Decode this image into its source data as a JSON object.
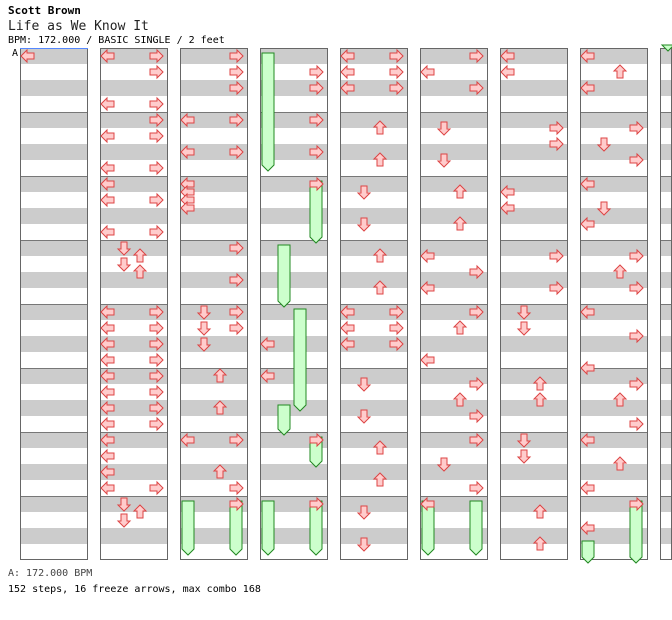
{
  "header": {
    "artist": "Scott Brown",
    "title": "Life as We Know It",
    "info": "BPM: 172.000 / BASIC SINGLE / 2 feet"
  },
  "bpm_marker": "A",
  "footer": {
    "bpm": "A: 172.000 BPM",
    "summary": "152 steps, 16 freeze arrows, max combo 168"
  },
  "colors": {
    "stripe": "#cccccc",
    "arrow_fill": "#ffcccc",
    "arrow_stroke": "#dd4444",
    "freeze_fill": "#ccffcc",
    "freeze_stroke": "#228822",
    "bpm_line": "#5588ff"
  },
  "columns": 9,
  "measures_per_column": 8,
  "lanes": [
    "left",
    "down",
    "up",
    "right"
  ],
  "notes": [
    [
      0,
      0.0,
      0,
      "N"
    ],
    [
      1,
      0.0,
      0,
      "N"
    ],
    [
      1,
      0.0,
      3,
      "N"
    ],
    [
      1,
      0.25,
      3,
      "N"
    ],
    [
      1,
      0.75,
      0,
      "N"
    ],
    [
      1,
      0.75,
      3,
      "N"
    ],
    [
      1,
      1.0,
      3,
      "N"
    ],
    [
      1,
      1.25,
      0,
      "N"
    ],
    [
      1,
      1.25,
      3,
      "N"
    ],
    [
      1,
      1.75,
      0,
      "N"
    ],
    [
      1,
      1.75,
      3,
      "N"
    ],
    [
      1,
      2.0,
      0,
      "N"
    ],
    [
      1,
      2.25,
      0,
      "N"
    ],
    [
      1,
      2.25,
      3,
      "N"
    ],
    [
      1,
      2.75,
      0,
      "N"
    ],
    [
      1,
      2.75,
      3,
      "N"
    ],
    [
      1,
      3.0,
      1,
      "N"
    ],
    [
      1,
      3.125,
      2,
      "N"
    ],
    [
      1,
      3.25,
      1,
      "N"
    ],
    [
      1,
      3.375,
      2,
      "N"
    ],
    [
      1,
      4.0,
      0,
      "N"
    ],
    [
      1,
      4.0,
      3,
      "N"
    ],
    [
      1,
      4.25,
      0,
      "N"
    ],
    [
      1,
      4.25,
      3,
      "N"
    ],
    [
      1,
      4.5,
      0,
      "N"
    ],
    [
      1,
      4.5,
      3,
      "N"
    ],
    [
      1,
      4.75,
      0,
      "N"
    ],
    [
      1,
      4.75,
      3,
      "N"
    ],
    [
      1,
      5.0,
      0,
      "N"
    ],
    [
      1,
      5.0,
      3,
      "N"
    ],
    [
      1,
      5.25,
      0,
      "N"
    ],
    [
      1,
      5.25,
      3,
      "N"
    ],
    [
      1,
      5.5,
      0,
      "N"
    ],
    [
      1,
      5.5,
      3,
      "N"
    ],
    [
      1,
      5.75,
      0,
      "N"
    ],
    [
      1,
      5.75,
      3,
      "N"
    ],
    [
      1,
      6.0,
      0,
      "N"
    ],
    [
      1,
      6.25,
      0,
      "N"
    ],
    [
      1,
      6.5,
      0,
      "N"
    ],
    [
      1,
      6.75,
      0,
      "N"
    ],
    [
      1,
      6.75,
      3,
      "N"
    ],
    [
      1,
      7.0,
      1,
      "N"
    ],
    [
      1,
      7.125,
      2,
      "N"
    ],
    [
      1,
      7.25,
      1,
      "N"
    ],
    [
      2,
      0.0,
      3,
      "N"
    ],
    [
      2,
      0.25,
      3,
      "N"
    ],
    [
      2,
      0.5,
      3,
      "N"
    ],
    [
      2,
      1.0,
      0,
      "N"
    ],
    [
      2,
      1.0,
      3,
      "N"
    ],
    [
      2,
      1.5,
      0,
      "N"
    ],
    [
      2,
      1.5,
      3,
      "N"
    ],
    [
      2,
      2.0,
      0,
      "N"
    ],
    [
      2,
      2.125,
      0,
      "N"
    ],
    [
      2,
      2.25,
      0,
      "N"
    ],
    [
      2,
      2.375,
      0,
      "N"
    ],
    [
      2,
      3.0,
      3,
      "N"
    ],
    [
      2,
      3.5,
      3,
      "N"
    ],
    [
      2,
      4.0,
      1,
      "N"
    ],
    [
      2,
      4.0,
      3,
      "N"
    ],
    [
      2,
      4.25,
      1,
      "N"
    ],
    [
      2,
      4.25,
      3,
      "N"
    ],
    [
      2,
      4.5,
      1,
      "N"
    ],
    [
      2,
      5.0,
      2,
      "N"
    ],
    [
      2,
      5.5,
      2,
      "N"
    ],
    [
      2,
      6.0,
      0,
      "N"
    ],
    [
      2,
      6.0,
      3,
      "N"
    ],
    [
      2,
      6.5,
      2,
      "N"
    ],
    [
      2,
      6.75,
      3,
      "N"
    ],
    [
      2,
      7.0,
      3,
      "N"
    ],
    [
      2,
      7.0,
      0,
      "F",
      0.875
    ],
    [
      2,
      7.0,
      3,
      "F",
      0.875
    ],
    [
      3,
      0.0,
      0,
      "F",
      1.875
    ],
    [
      3,
      0.25,
      3,
      "N"
    ],
    [
      3,
      0.5,
      3,
      "N"
    ],
    [
      3,
      1.0,
      3,
      "N"
    ],
    [
      3,
      1.5,
      3,
      "N"
    ],
    [
      3,
      2.0,
      3,
      "N"
    ],
    [
      3,
      2.0,
      3,
      "F",
      1.0
    ],
    [
      3,
      3.0,
      1,
      "F",
      1.0
    ],
    [
      3,
      4.0,
      2,
      "F",
      1.625
    ],
    [
      3,
      4.5,
      0,
      "N"
    ],
    [
      3,
      5.0,
      0,
      "N"
    ],
    [
      3,
      5.5,
      1,
      "F",
      0.5
    ],
    [
      3,
      6.0,
      3,
      "N"
    ],
    [
      3,
      6.0,
      3,
      "F",
      0.5
    ],
    [
      3,
      7.0,
      0,
      "F",
      0.875
    ],
    [
      3,
      7.0,
      3,
      "N"
    ],
    [
      3,
      7.0,
      3,
      "F",
      0.875
    ],
    [
      4,
      0.0,
      0,
      "N"
    ],
    [
      4,
      0.0,
      3,
      "N"
    ],
    [
      4,
      0.25,
      0,
      "N"
    ],
    [
      4,
      0.25,
      3,
      "N"
    ],
    [
      4,
      0.5,
      0,
      "N"
    ],
    [
      4,
      0.5,
      3,
      "N"
    ],
    [
      4,
      1.125,
      2,
      "N"
    ],
    [
      4,
      1.625,
      2,
      "N"
    ],
    [
      4,
      2.125,
      1,
      "N"
    ],
    [
      4,
      2.625,
      1,
      "N"
    ],
    [
      4,
      3.125,
      2,
      "N"
    ],
    [
      4,
      3.625,
      2,
      "N"
    ],
    [
      4,
      4.0,
      0,
      "N"
    ],
    [
      4,
      4.0,
      3,
      "N"
    ],
    [
      4,
      4.25,
      0,
      "N"
    ],
    [
      4,
      4.25,
      3,
      "N"
    ],
    [
      4,
      4.5,
      0,
      "N"
    ],
    [
      4,
      4.5,
      3,
      "N"
    ],
    [
      4,
      5.125,
      1,
      "N"
    ],
    [
      4,
      5.625,
      1,
      "N"
    ],
    [
      4,
      6.125,
      2,
      "N"
    ],
    [
      4,
      6.625,
      2,
      "N"
    ],
    [
      4,
      7.125,
      1,
      "N"
    ],
    [
      4,
      7.625,
      1,
      "N"
    ],
    [
      5,
      0.0,
      3,
      "N"
    ],
    [
      5,
      0.25,
      0,
      "N"
    ],
    [
      5,
      0.5,
      3,
      "N"
    ],
    [
      5,
      1.125,
      1,
      "N"
    ],
    [
      5,
      1.625,
      1,
      "N"
    ],
    [
      5,
      2.125,
      2,
      "N"
    ],
    [
      5,
      2.625,
      2,
      "N"
    ],
    [
      5,
      3.125,
      0,
      "N"
    ],
    [
      5,
      3.375,
      3,
      "N"
    ],
    [
      5,
      3.625,
      0,
      "N"
    ],
    [
      5,
      4.0,
      3,
      "N"
    ],
    [
      5,
      4.25,
      2,
      "N"
    ],
    [
      5,
      4.75,
      0,
      "N"
    ],
    [
      5,
      5.125,
      3,
      "N"
    ],
    [
      5,
      5.375,
      2,
      "N"
    ],
    [
      5,
      5.625,
      3,
      "N"
    ],
    [
      5,
      6.0,
      3,
      "N"
    ],
    [
      5,
      6.375,
      1,
      "N"
    ],
    [
      5,
      6.75,
      3,
      "N"
    ],
    [
      5,
      7.0,
      0,
      "N"
    ],
    [
      5,
      7.0,
      0,
      "F",
      0.875
    ],
    [
      5,
      7.0,
      3,
      "F",
      0.875
    ],
    [
      6,
      0.0,
      0,
      "N"
    ],
    [
      6,
      0.25,
      0,
      "N"
    ],
    [
      6,
      1.125,
      3,
      "N"
    ],
    [
      6,
      1.375,
      3,
      "N"
    ],
    [
      6,
      2.125,
      0,
      "N"
    ],
    [
      6,
      2.375,
      0,
      "N"
    ],
    [
      6,
      3.125,
      3,
      "N"
    ],
    [
      6,
      3.625,
      3,
      "N"
    ],
    [
      6,
      4.0,
      1,
      "N"
    ],
    [
      6,
      4.25,
      1,
      "N"
    ],
    [
      6,
      5.125,
      2,
      "N"
    ],
    [
      6,
      5.375,
      2,
      "N"
    ],
    [
      6,
      6.0,
      1,
      "N"
    ],
    [
      6,
      6.25,
      1,
      "N"
    ],
    [
      6,
      7.125,
      2,
      "N"
    ],
    [
      6,
      7.625,
      2,
      "N"
    ],
    [
      7,
      0.0,
      0,
      "N"
    ],
    [
      7,
      0.25,
      2,
      "N"
    ],
    [
      7,
      0.5,
      0,
      "N"
    ],
    [
      7,
      1.125,
      3,
      "N"
    ],
    [
      7,
      1.375,
      1,
      "N"
    ],
    [
      7,
      1.625,
      3,
      "N"
    ],
    [
      7,
      2.0,
      0,
      "N"
    ],
    [
      7,
      2.375,
      1,
      "N"
    ],
    [
      7,
      2.625,
      0,
      "N"
    ],
    [
      7,
      3.125,
      3,
      "N"
    ],
    [
      7,
      3.375,
      2,
      "N"
    ],
    [
      7,
      3.625,
      3,
      "N"
    ],
    [
      7,
      4.0,
      0,
      "N"
    ],
    [
      7,
      4.375,
      3,
      "N"
    ],
    [
      7,
      4.875,
      0,
      "N"
    ],
    [
      7,
      5.125,
      3,
      "N"
    ],
    [
      7,
      5.375,
      2,
      "N"
    ],
    [
      7,
      5.75,
      3,
      "N"
    ],
    [
      7,
      6.0,
      0,
      "N"
    ],
    [
      7,
      6.375,
      2,
      "N"
    ],
    [
      7,
      6.75,
      0,
      "N"
    ],
    [
      7,
      7.0,
      3,
      "N"
    ],
    [
      7,
      7.375,
      0,
      "N"
    ],
    [
      7,
      7.625,
      0,
      "F",
      0.375
    ],
    [
      7,
      7.0,
      3,
      "F",
      1.0
    ],
    [
      8,
      -0.125,
      0,
      "F",
      0.125
    ]
  ]
}
